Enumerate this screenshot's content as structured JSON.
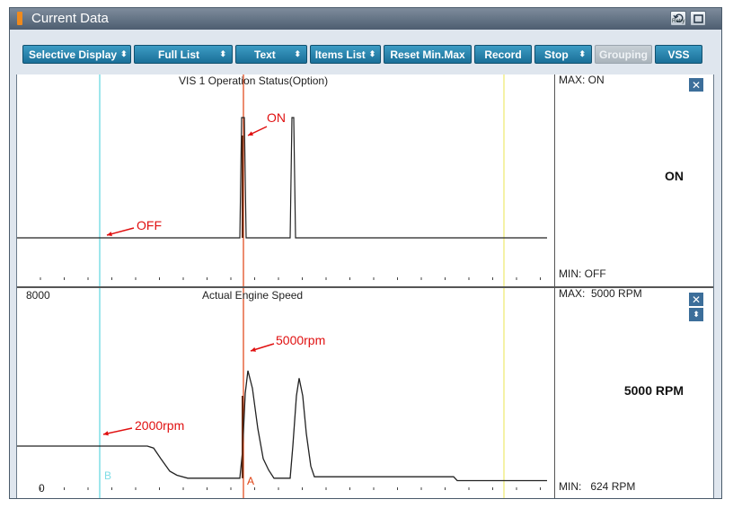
{
  "window": {
    "title": "Current Data",
    "retry_label": "Retry"
  },
  "toolbar": {
    "buttons": [
      {
        "label": "Selective Display",
        "chevron": "⬍"
      },
      {
        "label": "Full List",
        "chevron": "⬍"
      },
      {
        "label": "Text",
        "chevron": "⬍"
      },
      {
        "label": "Items List",
        "chevron": "⬍"
      },
      {
        "label": "Reset Min.Max"
      },
      {
        "label": "Record"
      },
      {
        "label": "Stop",
        "chevron": "⬍"
      },
      {
        "label": "Grouping",
        "disabled": true
      },
      {
        "label": "VSS"
      }
    ]
  },
  "colors": {
    "button": "#2a86b2",
    "cursor_b": "#7fdde6",
    "cursor_a": "#e04010",
    "marker_yellow": "#f2ee8a",
    "annotation": "#e01010"
  },
  "cursors": {
    "b_label": "B",
    "a_label": "A"
  },
  "panes": [
    {
      "title": "VIS 1 Operation Status(Option)",
      "max": "MAX: ON",
      "min": "MIN: OFF",
      "current": "ON",
      "annotations": [
        "ON",
        "OFF"
      ]
    },
    {
      "title": "Actual Engine Speed",
      "y_max_label": "8000",
      "y_min_label": "0",
      "max": "MAX:  5000 RPM",
      "min": "MIN:   624 RPM",
      "current": "5000 RPM",
      "annotations": [
        "5000rpm",
        "2000rpm"
      ]
    }
  ],
  "chart_data": [
    {
      "type": "line",
      "title": "VIS 1 Operation Status(Option)",
      "y_states": [
        "OFF",
        "ON"
      ],
      "series": [
        {
          "points": [
            [
              0,
              0
            ],
            [
              248,
              0
            ],
            [
              250,
              1
            ],
            [
              253,
              1
            ],
            [
              255,
              0
            ],
            [
              304,
              0
            ],
            [
              306,
              1
            ],
            [
              308,
              1
            ],
            [
              310,
              0
            ],
            [
              590,
              0
            ]
          ]
        }
      ]
    },
    {
      "type": "line",
      "title": "Actual Engine Speed",
      "ylim": [
        0,
        8000
      ],
      "series": [
        {
          "points": [
            [
              0,
              2000
            ],
            [
              145,
              2000
            ],
            [
              152,
              1920
            ],
            [
              160,
              1500
            ],
            [
              170,
              1000
            ],
            [
              178,
              840
            ],
            [
              190,
              720
            ],
            [
              248,
              720
            ],
            [
              251,
              1800
            ],
            [
              254,
              4100
            ],
            [
              257,
              5000
            ],
            [
              262,
              4300
            ],
            [
              268,
              2700
            ],
            [
              274,
              1500
            ],
            [
              280,
              1050
            ],
            [
              286,
              720
            ],
            [
              304,
              720
            ],
            [
              307,
              2000
            ],
            [
              311,
              4000
            ],
            [
              314,
              4700
            ],
            [
              318,
              4000
            ],
            [
              322,
              2500
            ],
            [
              327,
              1200
            ],
            [
              331,
              780
            ],
            [
              345,
              780
            ],
            [
              486,
              780
            ],
            [
              490,
              624
            ],
            [
              590,
              624
            ]
          ]
        }
      ]
    }
  ]
}
